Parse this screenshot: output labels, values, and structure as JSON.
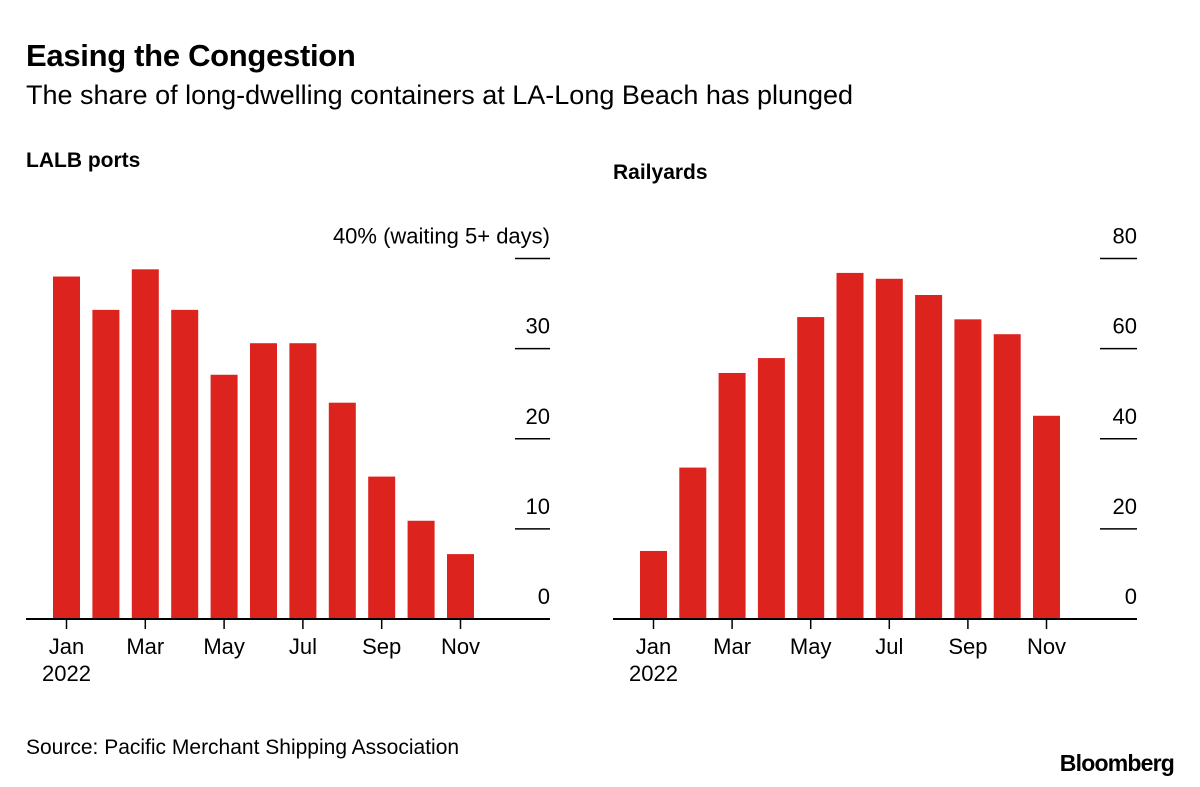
{
  "title": "Easing the Congestion",
  "subtitle": "The share of long-dwelling containers at LA-Long Beach has plunged",
  "source": "Source: Pacific Merchant Shipping Association",
  "logo": "Bloomberg",
  "colors": {
    "bar": "#dc231e",
    "axis": "#000000"
  },
  "chart_data": [
    {
      "type": "bar",
      "title": "LALB ports",
      "ylabel": "40% (waiting 5+ days)",
      "ylim": [
        0,
        40
      ],
      "yticks": [
        0,
        10,
        20,
        30,
        40
      ],
      "ytick_labels": [
        "0",
        "10",
        "20",
        "30",
        "40% (waiting 5+ days)"
      ],
      "axis_side": "right",
      "categories": [
        "Jan 2022",
        "Feb 2022",
        "Mar 2022",
        "Apr 2022",
        "May 2022",
        "Jun 2022",
        "Jul 2022",
        "Aug 2022",
        "Sep 2022",
        "Oct 2022",
        "Nov 2022"
      ],
      "xtick_labels": [
        "Jan",
        "Mar",
        "May",
        "Jul",
        "Sep",
        "Nov"
      ],
      "xtick_sublabel": "2022",
      "values": [
        38.0,
        34.3,
        38.8,
        34.3,
        27.1,
        30.6,
        30.6,
        24.0,
        15.8,
        10.9,
        7.2
      ]
    },
    {
      "type": "bar",
      "title": "Railyards",
      "ylim": [
        0,
        80
      ],
      "yticks": [
        0,
        20,
        40,
        60,
        80
      ],
      "ytick_labels": [
        "0",
        "20",
        "40",
        "60",
        "80"
      ],
      "axis_side": "right",
      "categories": [
        "Jan 2022",
        "Feb 2022",
        "Mar 2022",
        "Apr 2022",
        "May 2022",
        "Jun 2022",
        "Jul 2022",
        "Aug 2022",
        "Sep 2022",
        "Oct 2022",
        "Nov 2022"
      ],
      "xtick_labels": [
        "Jan",
        "Mar",
        "May",
        "Jul",
        "Sep",
        "Nov"
      ],
      "xtick_sublabel": "2022",
      "values": [
        15.1,
        33.6,
        54.6,
        57.9,
        67.0,
        76.8,
        75.5,
        71.9,
        66.5,
        63.2,
        45.1
      ]
    }
  ]
}
